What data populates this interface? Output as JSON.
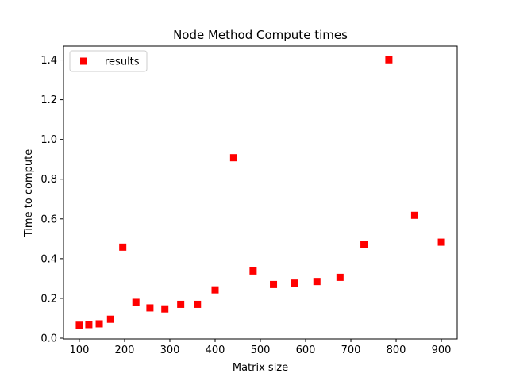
{
  "chart_data": {
    "type": "scatter",
    "title": "Node Method Compute times",
    "xlabel": "Matrix size",
    "ylabel": "Time to compute",
    "xlim": [
      65,
      935
    ],
    "ylim": [
      -0.004,
      1.47
    ],
    "xticks": [
      100,
      200,
      300,
      400,
      500,
      600,
      700,
      800,
      900
    ],
    "xtick_labels": [
      "100",
      "200",
      "300",
      "400",
      "500",
      "600",
      "700",
      "800",
      "900"
    ],
    "yticks": [
      0.0,
      0.2,
      0.4,
      0.6,
      0.8,
      1.0,
      1.2,
      1.4
    ],
    "ytick_labels": [
      "0.0",
      "0.2",
      "0.4",
      "0.6",
      "0.8",
      "1.0",
      "1.2",
      "1.4"
    ],
    "grid": false,
    "legend": {
      "placement": "top-left",
      "entries": [
        "results"
      ]
    },
    "series": [
      {
        "name": "results",
        "color": "#ff0000",
        "marker": "square",
        "x": [
          100,
          121,
          144,
          169,
          196,
          225,
          256,
          289,
          324,
          361,
          400,
          441,
          484,
          529,
          576,
          625,
          676,
          729,
          784,
          841,
          900
        ],
        "y": [
          0.065,
          0.068,
          0.072,
          0.095,
          0.458,
          0.18,
          0.152,
          0.147,
          0.17,
          0.17,
          0.243,
          0.908,
          0.338,
          0.27,
          0.277,
          0.285,
          0.306,
          0.47,
          1.401,
          0.618,
          0.483
        ]
      }
    ]
  }
}
